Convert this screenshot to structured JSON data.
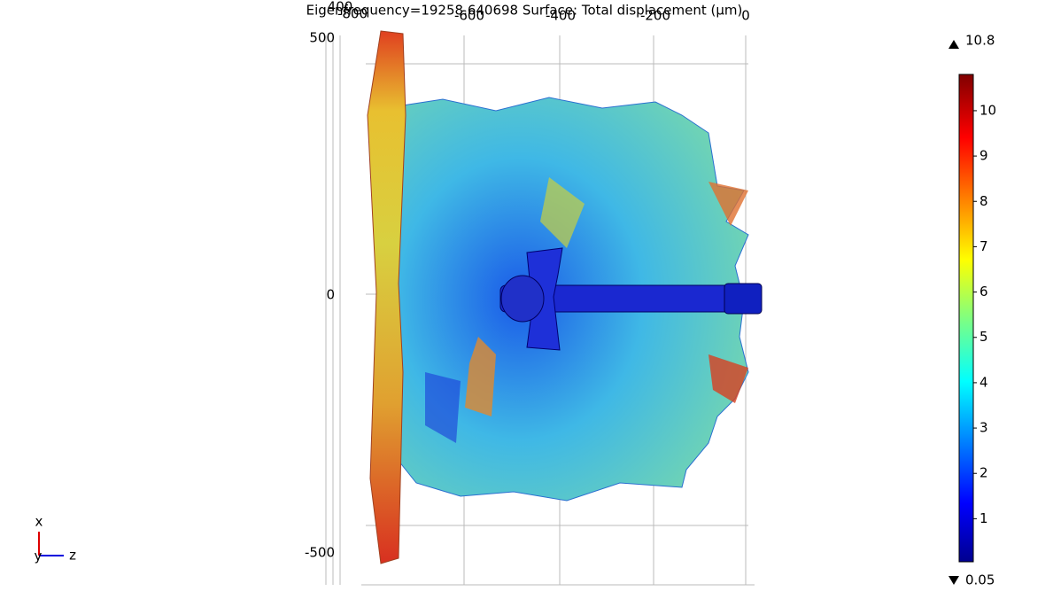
{
  "plot": {
    "title": "Eigenfrequency=19258.640698   Surface: Total displacement (μm)",
    "top_axis_labels": [
      "400",
      "-800",
      "-600",
      "-400",
      "-200",
      "0"
    ],
    "left_axis_labels": [
      "500",
      "0",
      "-500"
    ],
    "colorbar": {
      "max": 10.8,
      "min": 0.05,
      "ticks": [
        1,
        2,
        3,
        4,
        5,
        6,
        7,
        8,
        9,
        10
      ]
    },
    "triad": [
      "x",
      "y",
      "z"
    ]
  }
}
